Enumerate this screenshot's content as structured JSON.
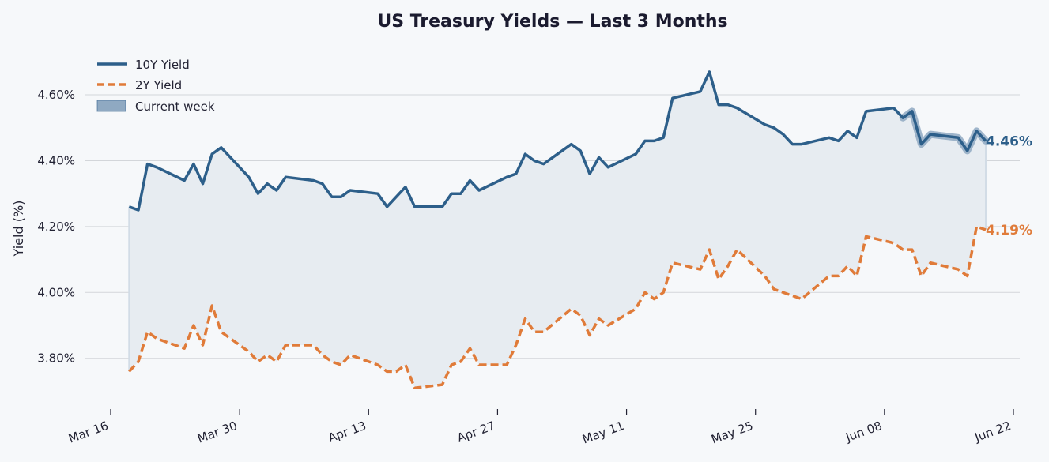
{
  "chart_data": {
    "type": "line",
    "title": "US Treasury Yields — Last 3 Months",
    "xlabel": "",
    "ylabel": "Yield (%)",
    "ylim": [
      3.665,
      4.72
    ],
    "xlim": [
      "2024-03-16",
      "2024-06-22"
    ],
    "y_ticks": [
      3.8,
      4.0,
      4.2,
      4.4,
      4.6
    ],
    "y_tick_labels": [
      "3.80%",
      "4.00%",
      "4.20%",
      "4.40%",
      "4.60%"
    ],
    "x_ticks": [
      "2024-03-16",
      "2024-03-30",
      "2024-04-13",
      "2024-04-27",
      "2024-05-11",
      "2024-05-25",
      "2024-06-08",
      "2024-06-22"
    ],
    "x_tick_labels": [
      "Mar 16",
      "Mar 30",
      "Apr 13",
      "Apr 27",
      "May 11",
      "May 25",
      "Jun 08",
      "Jun 22"
    ],
    "grid": "horizontal",
    "legend_position": "top-left",
    "legend": [
      "10Y Yield",
      "2Y Yield",
      "Current week"
    ],
    "colors": {
      "ten": "#2d5f8a",
      "two": "#e07b39",
      "fill": "#e7ecf1",
      "highlight": "#8fa9c2"
    },
    "highlight": {
      "name": "Current week",
      "start": "2024-06-11",
      "end": "2024-06-17"
    },
    "series": [
      {
        "name": "10Y Yield",
        "style": "solid",
        "points": [
          [
            "2024-03-18",
            4.26
          ],
          [
            "2024-03-19",
            4.25
          ],
          [
            "2024-03-20",
            4.39
          ],
          [
            "2024-03-21",
            4.38
          ],
          [
            "2024-03-24",
            4.34
          ],
          [
            "2024-03-25",
            4.39
          ],
          [
            "2024-03-26",
            4.33
          ],
          [
            "2024-03-27",
            4.42
          ],
          [
            "2024-03-28",
            4.44
          ],
          [
            "2024-03-31",
            4.35
          ],
          [
            "2024-04-01",
            4.3
          ],
          [
            "2024-04-02",
            4.33
          ],
          [
            "2024-04-03",
            4.31
          ],
          [
            "2024-04-04",
            4.35
          ],
          [
            "2024-04-07",
            4.34
          ],
          [
            "2024-04-08",
            4.33
          ],
          [
            "2024-04-09",
            4.29
          ],
          [
            "2024-04-10",
            4.29
          ],
          [
            "2024-04-11",
            4.31
          ],
          [
            "2024-04-14",
            4.3
          ],
          [
            "2024-04-15",
            4.26
          ],
          [
            "2024-04-17",
            4.32
          ],
          [
            "2024-04-18",
            4.26
          ],
          [
            "2024-04-21",
            4.26
          ],
          [
            "2024-04-22",
            4.3
          ],
          [
            "2024-04-23",
            4.3
          ],
          [
            "2024-04-24",
            4.34
          ],
          [
            "2024-04-25",
            4.31
          ],
          [
            "2024-04-28",
            4.35
          ],
          [
            "2024-04-29",
            4.36
          ],
          [
            "2024-04-30",
            4.42
          ],
          [
            "2024-05-01",
            4.4
          ],
          [
            "2024-05-02",
            4.39
          ],
          [
            "2024-05-05",
            4.45
          ],
          [
            "2024-05-06",
            4.43
          ],
          [
            "2024-05-07",
            4.36
          ],
          [
            "2024-05-08",
            4.41
          ],
          [
            "2024-05-09",
            4.38
          ],
          [
            "2024-05-12",
            4.42
          ],
          [
            "2024-05-13",
            4.46
          ],
          [
            "2024-05-14",
            4.46
          ],
          [
            "2024-05-15",
            4.47
          ],
          [
            "2024-05-16",
            4.59
          ],
          [
            "2024-05-19",
            4.61
          ],
          [
            "2024-05-20",
            4.67
          ],
          [
            "2024-05-21",
            4.57
          ],
          [
            "2024-05-22",
            4.57
          ],
          [
            "2024-05-23",
            4.56
          ],
          [
            "2024-05-26",
            4.51
          ],
          [
            "2024-05-27",
            4.5
          ],
          [
            "2024-05-28",
            4.48
          ],
          [
            "2024-05-29",
            4.45
          ],
          [
            "2024-05-30",
            4.45
          ],
          [
            "2024-06-02",
            4.47
          ],
          [
            "2024-06-03",
            4.46
          ],
          [
            "2024-06-04",
            4.49
          ],
          [
            "2024-06-05",
            4.47
          ],
          [
            "2024-06-06",
            4.55
          ],
          [
            "2024-06-09",
            4.56
          ],
          [
            "2024-06-10",
            4.53
          ],
          [
            "2024-06-11",
            4.55
          ],
          [
            "2024-06-12",
            4.45
          ],
          [
            "2024-06-13",
            4.48
          ],
          [
            "2024-06-16",
            4.47
          ],
          [
            "2024-06-17",
            4.43
          ],
          [
            "2024-06-18",
            4.49
          ],
          [
            "2024-06-19",
            4.46
          ]
        ]
      },
      {
        "name": "2Y Yield",
        "style": "dashed",
        "points": [
          [
            "2024-03-18",
            3.76
          ],
          [
            "2024-03-19",
            3.79
          ],
          [
            "2024-03-20",
            3.88
          ],
          [
            "2024-03-21",
            3.86
          ],
          [
            "2024-03-24",
            3.83
          ],
          [
            "2024-03-25",
            3.9
          ],
          [
            "2024-03-26",
            3.84
          ],
          [
            "2024-03-27",
            3.96
          ],
          [
            "2024-03-28",
            3.88
          ],
          [
            "2024-03-31",
            3.82
          ],
          [
            "2024-04-01",
            3.79
          ],
          [
            "2024-04-02",
            3.81
          ],
          [
            "2024-04-03",
            3.79
          ],
          [
            "2024-04-04",
            3.84
          ],
          [
            "2024-04-07",
            3.84
          ],
          [
            "2024-04-08",
            3.81
          ],
          [
            "2024-04-09",
            3.79
          ],
          [
            "2024-04-10",
            3.78
          ],
          [
            "2024-04-11",
            3.81
          ],
          [
            "2024-04-14",
            3.78
          ],
          [
            "2024-04-15",
            3.76
          ],
          [
            "2024-04-16",
            3.76
          ],
          [
            "2024-04-17",
            3.78
          ],
          [
            "2024-04-18",
            3.71
          ],
          [
            "2024-04-21",
            3.72
          ],
          [
            "2024-04-22",
            3.78
          ],
          [
            "2024-04-23",
            3.79
          ],
          [
            "2024-04-24",
            3.83
          ],
          [
            "2024-04-25",
            3.78
          ],
          [
            "2024-04-28",
            3.78
          ],
          [
            "2024-04-29",
            3.84
          ],
          [
            "2024-04-30",
            3.92
          ],
          [
            "2024-05-01",
            3.88
          ],
          [
            "2024-05-02",
            3.88
          ],
          [
            "2024-05-05",
            3.95
          ],
          [
            "2024-05-06",
            3.93
          ],
          [
            "2024-05-07",
            3.87
          ],
          [
            "2024-05-08",
            3.92
          ],
          [
            "2024-05-09",
            3.9
          ],
          [
            "2024-05-12",
            3.95
          ],
          [
            "2024-05-13",
            4.0
          ],
          [
            "2024-05-14",
            3.98
          ],
          [
            "2024-05-15",
            4.0
          ],
          [
            "2024-05-16",
            4.09
          ],
          [
            "2024-05-19",
            4.07
          ],
          [
            "2024-05-20",
            4.13
          ],
          [
            "2024-05-21",
            4.04
          ],
          [
            "2024-05-22",
            4.08
          ],
          [
            "2024-05-23",
            4.13
          ],
          [
            "2024-05-26",
            4.05
          ],
          [
            "2024-05-27",
            4.01
          ],
          [
            "2024-05-30",
            3.98
          ],
          [
            "2024-06-02",
            4.05
          ],
          [
            "2024-06-03",
            4.05
          ],
          [
            "2024-06-04",
            4.08
          ],
          [
            "2024-06-05",
            4.05
          ],
          [
            "2024-06-06",
            4.17
          ],
          [
            "2024-06-09",
            4.15
          ],
          [
            "2024-06-10",
            4.13
          ],
          [
            "2024-06-11",
            4.13
          ],
          [
            "2024-06-12",
            4.05
          ],
          [
            "2024-06-13",
            4.09
          ],
          [
            "2024-06-16",
            4.07
          ],
          [
            "2024-06-17",
            4.05
          ],
          [
            "2024-06-18",
            4.2
          ],
          [
            "2024-06-19",
            4.19
          ]
        ]
      }
    ],
    "end_labels": [
      {
        "series": "10Y Yield",
        "text": "4.46%",
        "value": 4.46
      },
      {
        "series": "2Y Yield",
        "text": "4.19%",
        "value": 4.19
      }
    ]
  }
}
